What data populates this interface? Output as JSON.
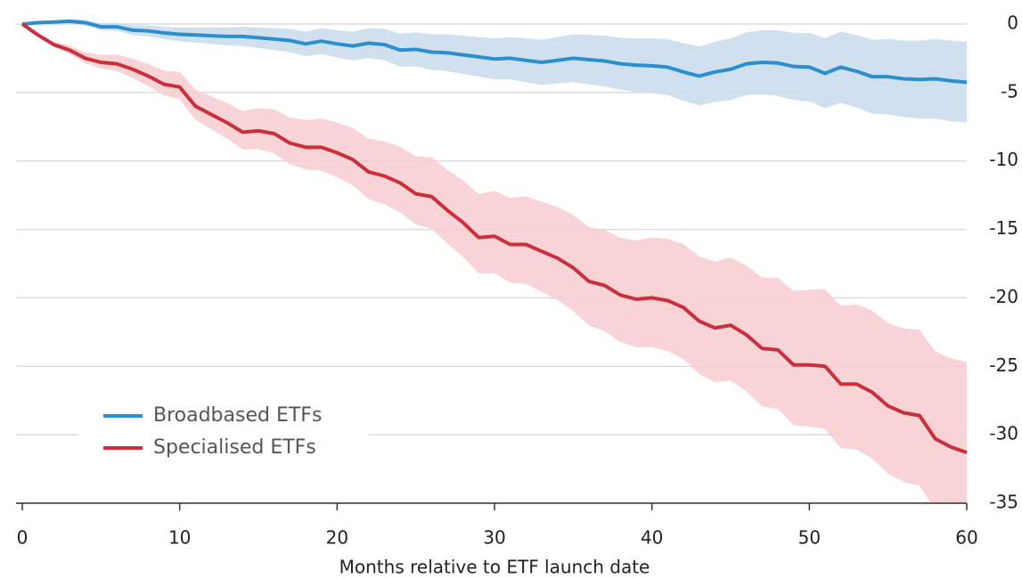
{
  "chart_data": {
    "type": "line",
    "xlabel": "Months relative to ETF launch date",
    "x": [
      0,
      1,
      2,
      3,
      4,
      5,
      6,
      7,
      8,
      9,
      10,
      11,
      12,
      13,
      14,
      15,
      16,
      17,
      18,
      19,
      20,
      21,
      22,
      23,
      24,
      25,
      26,
      27,
      28,
      29,
      30,
      31,
      32,
      33,
      34,
      35,
      36,
      37,
      38,
      39,
      40,
      41,
      42,
      43,
      44,
      45,
      46,
      47,
      48,
      49,
      50,
      51,
      52,
      53,
      54,
      55,
      56,
      57,
      58,
      59,
      60
    ],
    "xlim": [
      0,
      60
    ],
    "xticks": [
      0,
      10,
      20,
      30,
      40,
      50,
      60
    ],
    "ylim": [
      -35,
      0
    ],
    "yticks": [
      0,
      -5,
      -10,
      -15,
      -20,
      -25,
      -30,
      -35
    ],
    "grid": true,
    "legend": "lower left",
    "series": [
      {
        "name": "Broadbased ETFs",
        "color": "#2b8fcf",
        "band_color": "#c9dbec",
        "values": [
          0,
          0.1,
          0.15,
          0.2,
          0.1,
          -0.2,
          -0.2,
          -0.45,
          -0.5,
          -0.65,
          -0.75,
          -0.8,
          -0.85,
          -0.9,
          -0.9,
          -1.0,
          -1.1,
          -1.2,
          -1.45,
          -1.25,
          -1.45,
          -1.6,
          -1.4,
          -1.5,
          -1.9,
          -1.85,
          -2.05,
          -2.1,
          -2.25,
          -2.4,
          -2.55,
          -2.5,
          -2.65,
          -2.8,
          -2.65,
          -2.5,
          -2.6,
          -2.7,
          -2.9,
          -3.0,
          -3.05,
          -3.15,
          -3.5,
          -3.8,
          -3.5,
          -3.3,
          -2.9,
          -2.8,
          -2.85,
          -3.1,
          -3.15,
          -3.6,
          -3.15,
          -3.45,
          -3.85,
          -3.85,
          -4.0,
          -4.05,
          -4.0,
          -4.15,
          -4.25
        ],
        "upper": [
          0,
          0.15,
          0.25,
          0.35,
          0.3,
          0.05,
          0.1,
          -0.1,
          -0.1,
          -0.2,
          -0.25,
          -0.25,
          -0.25,
          -0.25,
          -0.2,
          -0.25,
          -0.3,
          -0.35,
          -0.55,
          -0.3,
          -0.45,
          -0.55,
          -0.3,
          -0.35,
          -0.7,
          -0.6,
          -0.75,
          -0.75,
          -0.85,
          -0.95,
          -1.05,
          -0.95,
          -1.05,
          -1.15,
          -0.95,
          -0.75,
          -0.8,
          -0.85,
          -1.0,
          -1.05,
          -1.05,
          -1.1,
          -1.4,
          -1.65,
          -1.3,
          -1.05,
          -0.6,
          -0.45,
          -0.45,
          -0.65,
          -0.65,
          -1.05,
          -0.55,
          -0.8,
          -1.15,
          -1.1,
          -1.2,
          -1.2,
          -1.1,
          -1.2,
          -1.3
        ],
        "lower": [
          0,
          0.05,
          0.05,
          0.05,
          -0.1,
          -0.45,
          -0.5,
          -0.8,
          -0.9,
          -1.1,
          -1.25,
          -1.35,
          -1.45,
          -1.55,
          -1.6,
          -1.75,
          -1.9,
          -2.05,
          -2.35,
          -2.2,
          -2.45,
          -2.65,
          -2.5,
          -2.65,
          -3.1,
          -3.1,
          -3.35,
          -3.45,
          -3.65,
          -3.85,
          -4.05,
          -4.05,
          -4.25,
          -4.45,
          -4.35,
          -4.25,
          -4.4,
          -4.55,
          -4.8,
          -4.95,
          -5.05,
          -5.2,
          -5.6,
          -5.95,
          -5.7,
          -5.55,
          -5.2,
          -5.15,
          -5.25,
          -5.55,
          -5.65,
          -6.15,
          -5.75,
          -6.1,
          -6.55,
          -6.6,
          -6.8,
          -6.9,
          -6.9,
          -7.1,
          -7.2
        ]
      },
      {
        "name": "Specialised ETFs",
        "color": "#cc2f3c",
        "band_color": "#f7cdd0",
        "values": [
          0,
          -0.8,
          -1.5,
          -1.9,
          -2.5,
          -2.8,
          -2.9,
          -3.3,
          -3.8,
          -4.4,
          -4.6,
          -6.0,
          -6.6,
          -7.2,
          -7.9,
          -7.8,
          -8.0,
          -8.7,
          -9.0,
          -9.0,
          -9.4,
          -9.9,
          -10.8,
          -11.1,
          -11.6,
          -12.4,
          -12.6,
          -13.6,
          -14.5,
          -15.6,
          -15.5,
          -16.1,
          -16.1,
          -16.6,
          -17.1,
          -17.8,
          -18.8,
          -19.1,
          -19.8,
          -20.1,
          -20.0,
          -20.2,
          -20.7,
          -21.7,
          -22.2,
          -22.0,
          -22.7,
          -23.7,
          -23.8,
          -24.9,
          -24.9,
          -25.0,
          -26.3,
          -26.3,
          -26.9,
          -27.9,
          -28.4,
          -28.6,
          -30.3,
          -30.9,
          -31.3
        ],
        "upper": [
          0,
          -0.69,
          -1.28,
          -1.57,
          -2.06,
          -2.25,
          -2.24,
          -2.53,
          -2.92,
          -3.41,
          -3.5,
          -4.79,
          -5.28,
          -5.77,
          -6.36,
          -6.15,
          -6.24,
          -6.83,
          -7.02,
          -6.91,
          -7.2,
          -7.59,
          -8.38,
          -8.57,
          -8.96,
          -9.65,
          -9.74,
          -10.63,
          -11.42,
          -12.41,
          -12.2,
          -12.69,
          -12.58,
          -12.97,
          -13.36,
          -13.95,
          -14.84,
          -15.03,
          -15.62,
          -15.81,
          -15.6,
          -15.69,
          -16.08,
          -16.97,
          -17.36,
          -17.05,
          -17.64,
          -18.53,
          -18.52,
          -19.51,
          -19.4,
          -19.39,
          -20.58,
          -20.47,
          -20.96,
          -21.85,
          -22.24,
          -22.33,
          -23.92,
          -24.41,
          -24.7
        ],
        "lower": [
          0,
          -0.89,
          -1.68,
          -2.17,
          -2.86,
          -3.25,
          -3.44,
          -3.93,
          -4.52,
          -5.21,
          -5.5,
          -6.99,
          -7.68,
          -8.37,
          -9.16,
          -9.15,
          -9.44,
          -10.23,
          -10.62,
          -10.71,
          -11.2,
          -11.79,
          -12.78,
          -13.17,
          -13.76,
          -14.65,
          -14.94,
          -16.03,
          -17.02,
          -18.21,
          -18.2,
          -18.89,
          -18.98,
          -19.57,
          -20.16,
          -20.95,
          -22.04,
          -22.43,
          -23.22,
          -23.61,
          -23.6,
          -23.89,
          -24.48,
          -25.57,
          -26.16,
          -26.05,
          -26.84,
          -27.93,
          -28.12,
          -29.31,
          -29.4,
          -29.59,
          -30.98,
          -31.07,
          -31.76,
          -32.85,
          -33.44,
          -33.73,
          -35.52,
          -36.21,
          -36.7
        ]
      }
    ]
  }
}
